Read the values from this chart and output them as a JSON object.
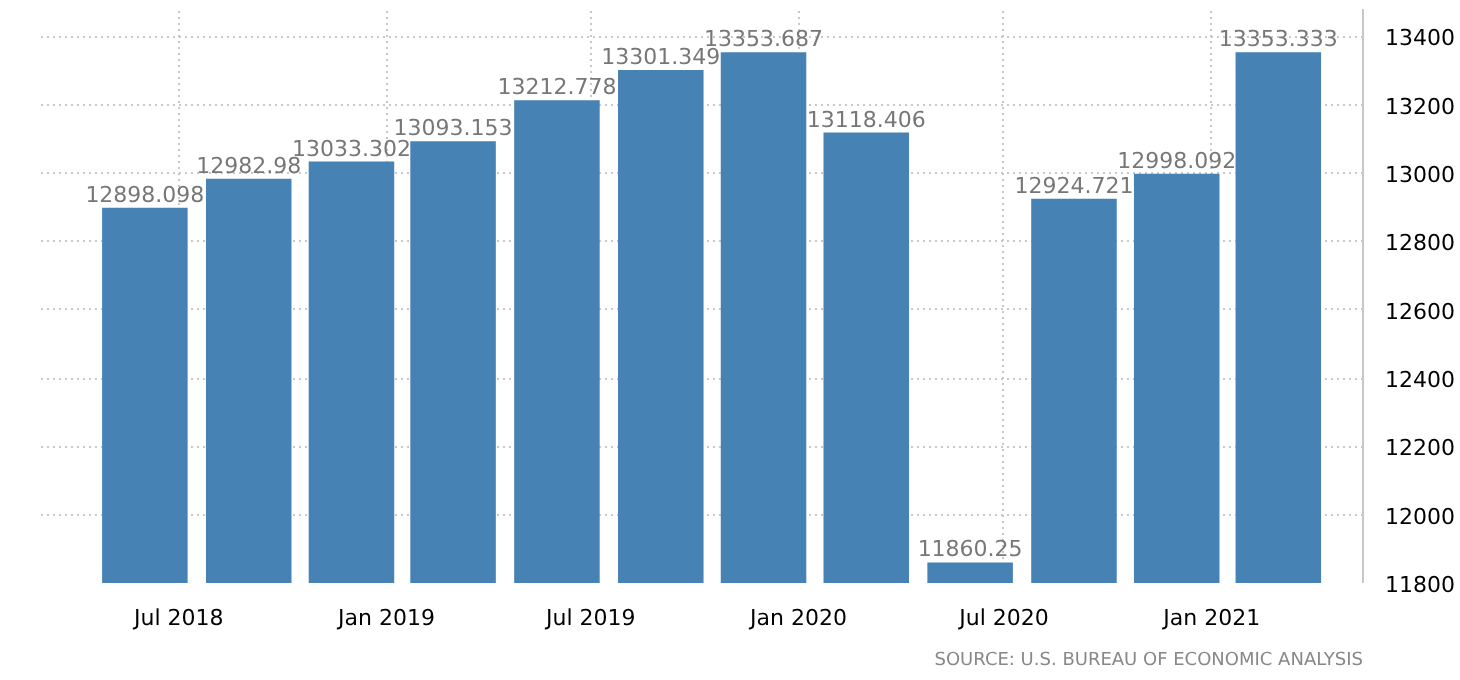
{
  "chart_data": {
    "type": "bar",
    "x": [
      "2018-06",
      "2018-09",
      "2018-12",
      "2019-03",
      "2019-06",
      "2019-09",
      "2019-12",
      "2020-03",
      "2020-06",
      "2020-09",
      "2020-12",
      "2021-03"
    ],
    "values": [
      12898.098,
      12982.98,
      13033.302,
      13093.153,
      13212.778,
      13301.349,
      13353.687,
      13118.406,
      11860.25,
      12924.721,
      12998.092,
      13353.333
    ],
    "color": "#4682b4",
    "xlim": [
      "2018-03-01",
      "2021-05-15"
    ],
    "xticks": [
      {
        "value": "2018-07",
        "label": "Jul 2018"
      },
      {
        "value": "2019-01",
        "label": "Jan 2019"
      },
      {
        "value": "2019-07",
        "label": "Jul 2019"
      },
      {
        "value": "2020-01",
        "label": "Jan 2020"
      },
      {
        "value": "2020-07",
        "label": "Jul 2020"
      },
      {
        "value": "2021-01",
        "label": "Jan 2021"
      }
    ],
    "ylim": [
      11800,
      13480
    ],
    "yticks": [
      11800,
      12000,
      12200,
      12400,
      12600,
      12800,
      13000,
      13200,
      13400
    ],
    "grid": true,
    "data_labels": true,
    "annotations": [
      "SOURCE: U.S. BUREAU OF ECONOMIC ANALYSIS"
    ]
  }
}
